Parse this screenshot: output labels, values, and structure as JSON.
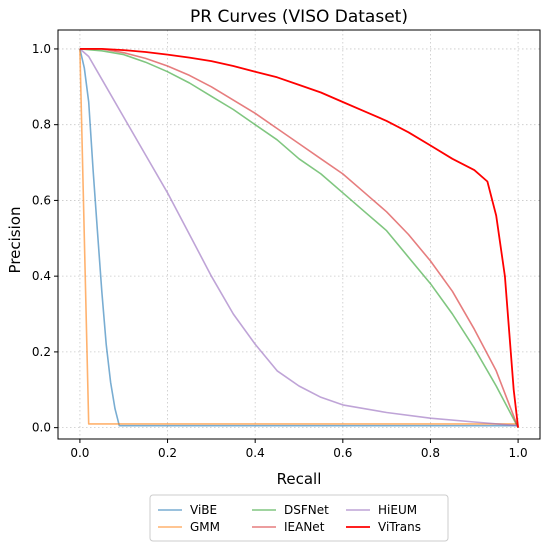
{
  "chart_data": {
    "type": "line",
    "title": "PR Curves (VISO Dataset)",
    "xlabel": "Recall",
    "ylabel": "Precision",
    "xlim": [
      -0.05,
      1.05
    ],
    "ylim": [
      -0.03,
      1.05
    ],
    "xticks": [
      "0.0",
      "0.2",
      "0.4",
      "0.6",
      "0.8",
      "1.0"
    ],
    "yticks": [
      "0.0",
      "0.2",
      "0.4",
      "0.6",
      "0.8",
      "1.0"
    ],
    "grid": true,
    "legend_position": "bottom-center-outside",
    "series": [
      {
        "name": "ViBE",
        "color": "#1f77b4",
        "points": [
          [
            0.0,
            1.0
          ],
          [
            0.01,
            0.95
          ],
          [
            0.02,
            0.86
          ],
          [
            0.03,
            0.68
          ],
          [
            0.04,
            0.52
          ],
          [
            0.05,
            0.36
          ],
          [
            0.06,
            0.22
          ],
          [
            0.07,
            0.12
          ],
          [
            0.08,
            0.05
          ],
          [
            0.09,
            0.005
          ],
          [
            1.0,
            0.005
          ]
        ]
      },
      {
        "name": "GMM",
        "color": "#ff7f0e",
        "points": [
          [
            0.0,
            1.0
          ],
          [
            0.02,
            0.01
          ],
          [
            1.0,
            0.01
          ]
        ]
      },
      {
        "name": "DSFNet",
        "color": "#2ca02c",
        "points": [
          [
            0.0,
            1.0
          ],
          [
            0.05,
            0.995
          ],
          [
            0.1,
            0.985
          ],
          [
            0.15,
            0.965
          ],
          [
            0.2,
            0.94
          ],
          [
            0.25,
            0.91
          ],
          [
            0.3,
            0.875
          ],
          [
            0.35,
            0.84
          ],
          [
            0.4,
            0.8
          ],
          [
            0.45,
            0.76
          ],
          [
            0.5,
            0.71
          ],
          [
            0.55,
            0.67
          ],
          [
            0.6,
            0.62
          ],
          [
            0.65,
            0.57
          ],
          [
            0.7,
            0.52
          ],
          [
            0.75,
            0.45
          ],
          [
            0.8,
            0.38
          ],
          [
            0.85,
            0.3
          ],
          [
            0.9,
            0.21
          ],
          [
            0.95,
            0.11
          ],
          [
            1.0,
            0.0
          ]
        ]
      },
      {
        "name": "IEANet",
        "color": "#d62728",
        "points": [
          [
            0.0,
            1.0
          ],
          [
            0.05,
            1.0
          ],
          [
            0.1,
            0.99
          ],
          [
            0.15,
            0.975
          ],
          [
            0.2,
            0.955
          ],
          [
            0.25,
            0.93
          ],
          [
            0.3,
            0.9
          ],
          [
            0.35,
            0.865
          ],
          [
            0.4,
            0.83
          ],
          [
            0.45,
            0.79
          ],
          [
            0.5,
            0.75
          ],
          [
            0.55,
            0.71
          ],
          [
            0.6,
            0.67
          ],
          [
            0.65,
            0.62
          ],
          [
            0.7,
            0.57
          ],
          [
            0.75,
            0.51
          ],
          [
            0.8,
            0.44
          ],
          [
            0.85,
            0.36
          ],
          [
            0.9,
            0.26
          ],
          [
            0.95,
            0.15
          ],
          [
            1.0,
            0.0
          ]
        ]
      },
      {
        "name": "HiEUM",
        "color": "#9467bd",
        "points": [
          [
            0.0,
            1.0
          ],
          [
            0.02,
            0.98
          ],
          [
            0.05,
            0.92
          ],
          [
            0.1,
            0.82
          ],
          [
            0.15,
            0.72
          ],
          [
            0.2,
            0.62
          ],
          [
            0.25,
            0.51
          ],
          [
            0.3,
            0.4
          ],
          [
            0.35,
            0.3
          ],
          [
            0.4,
            0.22
          ],
          [
            0.45,
            0.15
          ],
          [
            0.5,
            0.11
          ],
          [
            0.55,
            0.08
          ],
          [
            0.6,
            0.06
          ],
          [
            0.7,
            0.04
          ],
          [
            0.8,
            0.025
          ],
          [
            0.9,
            0.015
          ],
          [
            1.0,
            0.005
          ]
        ]
      },
      {
        "name": "ViTrans",
        "color": "#ff0000",
        "points": [
          [
            0.0,
            1.0
          ],
          [
            0.05,
            1.0
          ],
          [
            0.1,
            0.997
          ],
          [
            0.15,
            0.992
          ],
          [
            0.2,
            0.985
          ],
          [
            0.25,
            0.977
          ],
          [
            0.3,
            0.968
          ],
          [
            0.35,
            0.955
          ],
          [
            0.4,
            0.94
          ],
          [
            0.45,
            0.925
          ],
          [
            0.5,
            0.905
          ],
          [
            0.55,
            0.885
          ],
          [
            0.6,
            0.86
          ],
          [
            0.65,
            0.835
          ],
          [
            0.7,
            0.81
          ],
          [
            0.75,
            0.78
          ],
          [
            0.8,
            0.745
          ],
          [
            0.85,
            0.71
          ],
          [
            0.9,
            0.68
          ],
          [
            0.93,
            0.65
          ],
          [
            0.95,
            0.56
          ],
          [
            0.97,
            0.4
          ],
          [
            0.98,
            0.25
          ],
          [
            0.99,
            0.1
          ],
          [
            1.0,
            0.0
          ]
        ]
      }
    ]
  }
}
